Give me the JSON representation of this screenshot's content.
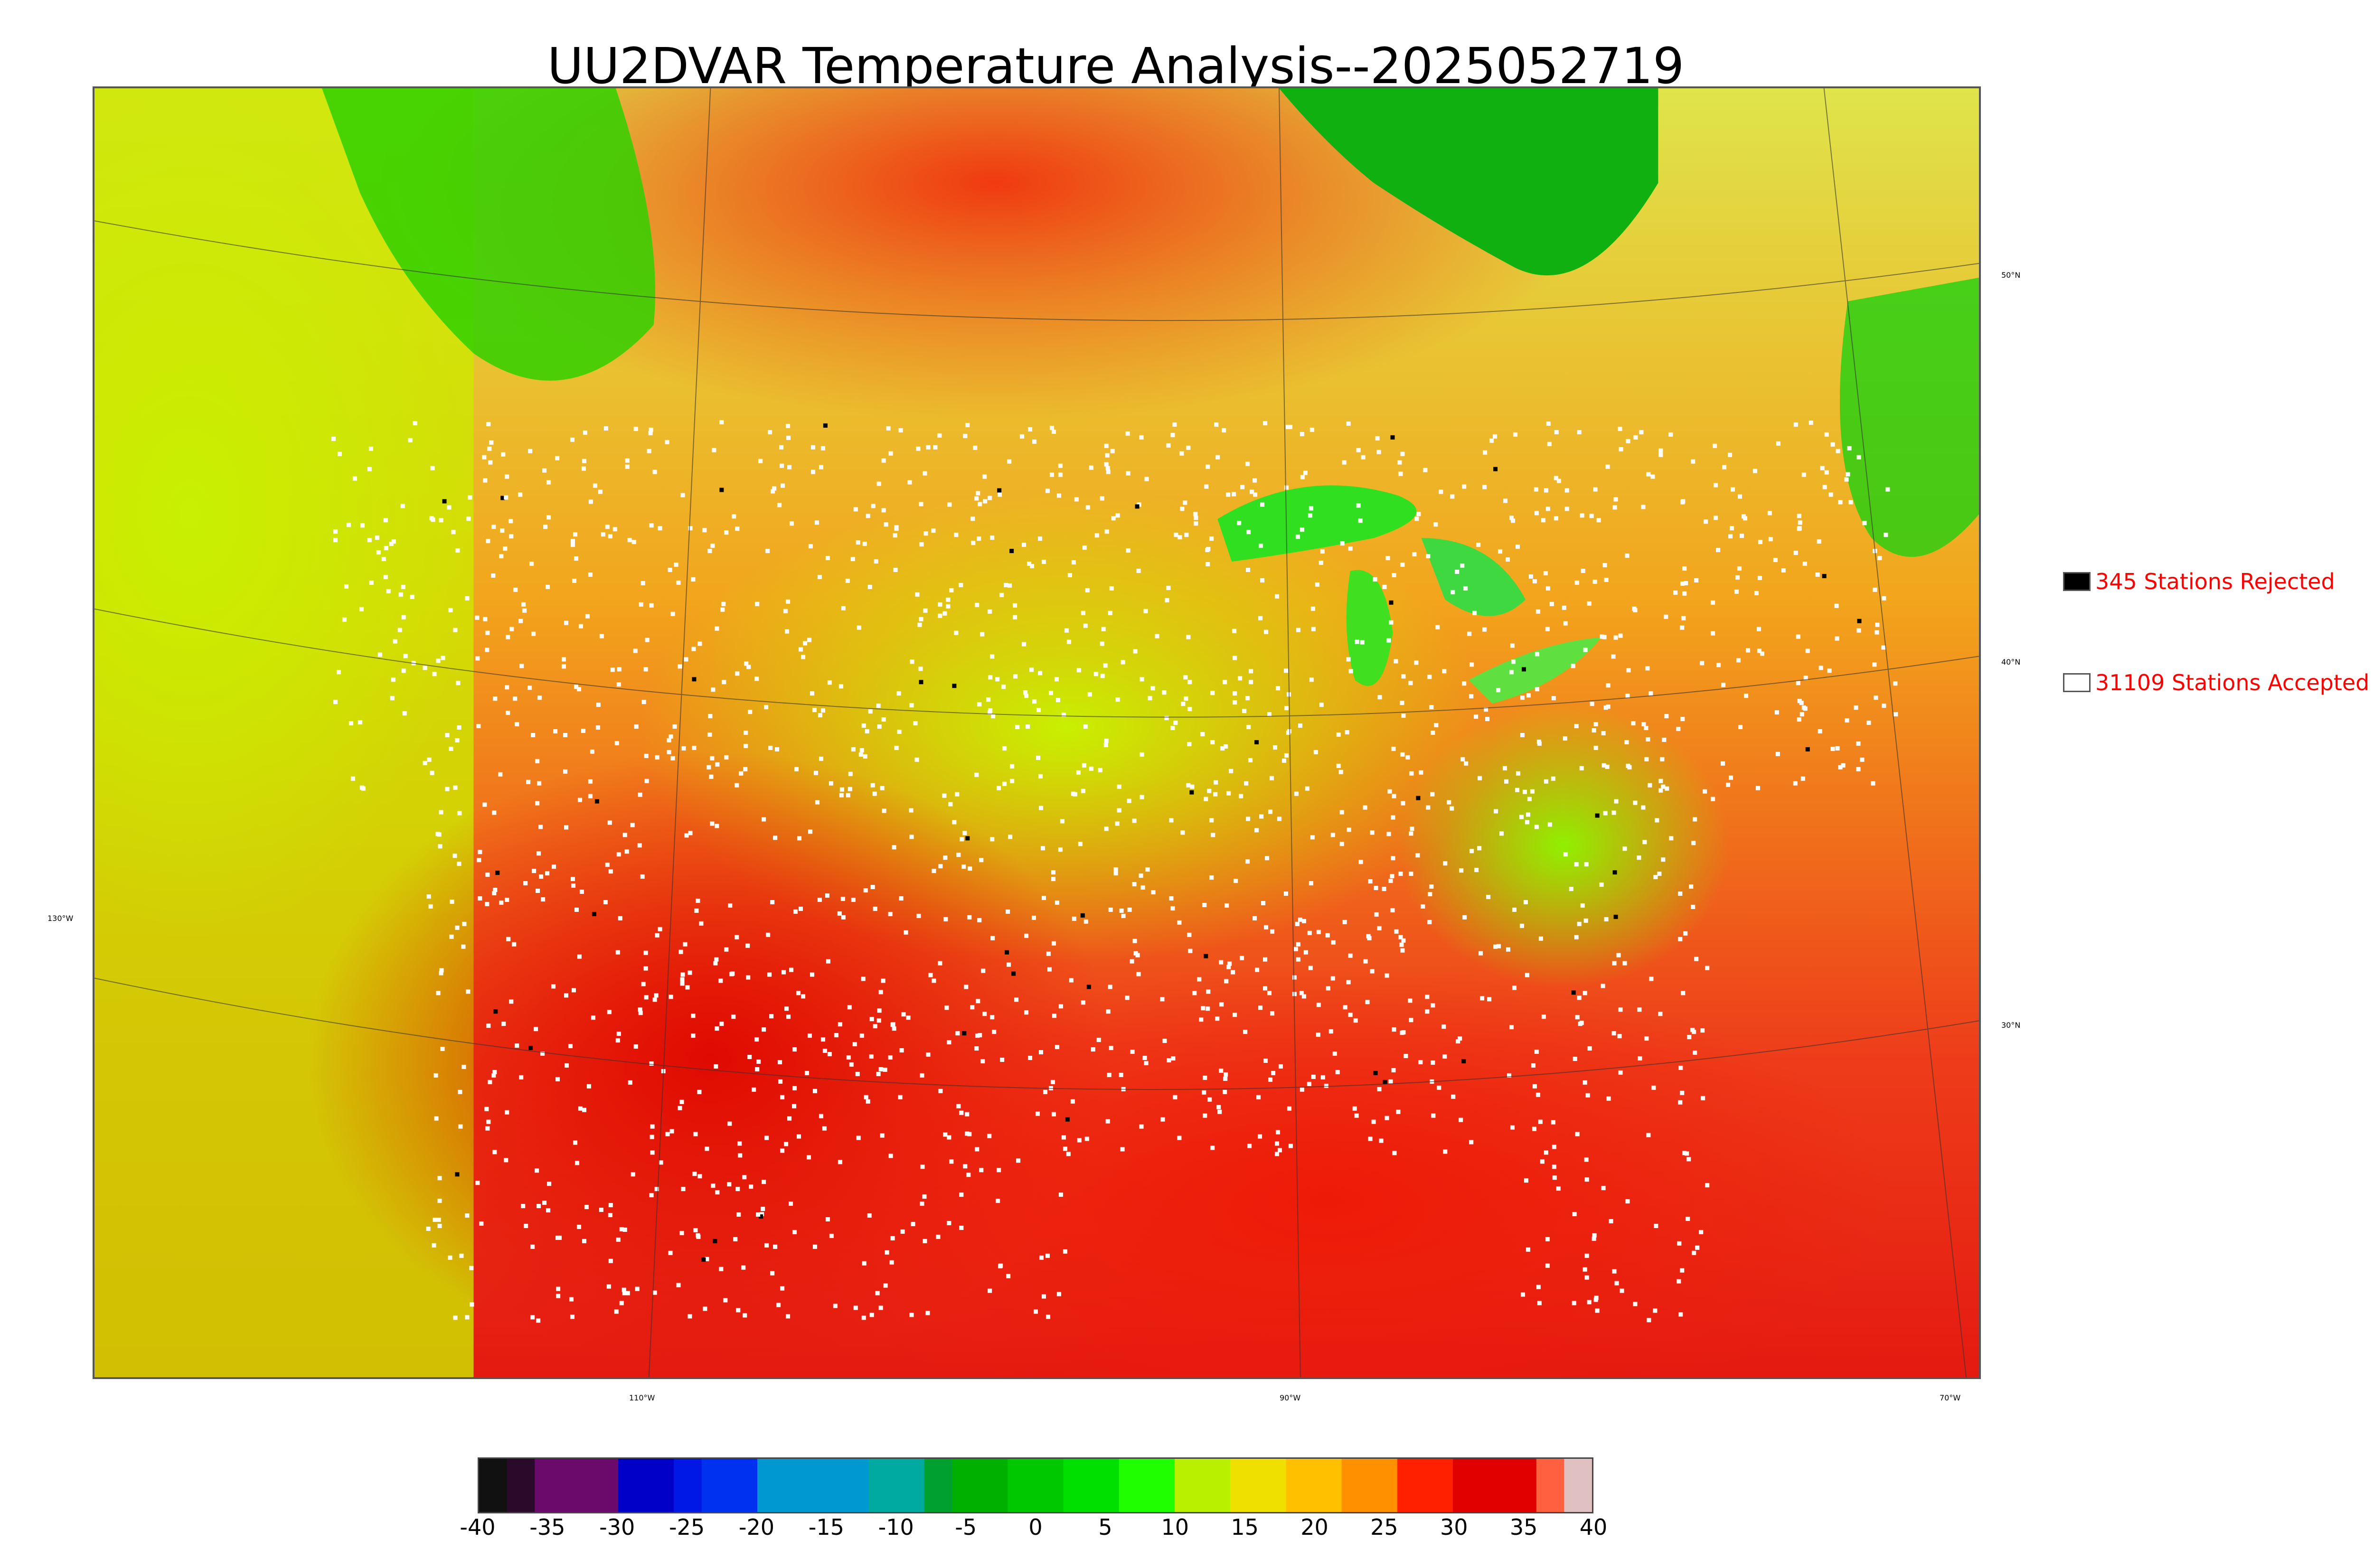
{
  "title": "UU2DVAR Temperature Analysis--2025052719",
  "map": {
    "lat_labels": [
      "50°N",
      "40°N",
      "30°N"
    ],
    "lon_labels": [
      "130°W",
      "110°W",
      "90°W",
      "70°W"
    ]
  },
  "legend": {
    "rejected": {
      "label": "345 Stations Rejected",
      "swatch_color": "#000000"
    },
    "accepted": {
      "label": "31109 Stations Accepted",
      "swatch_color": "#ffffff"
    },
    "text_color": "#ff0000"
  },
  "colorbar": {
    "min": -40,
    "max": 40,
    "tick_labels": [
      "-40",
      "-35",
      "-30",
      "-25",
      "-20",
      "-15",
      "-10",
      "-5",
      "0",
      "5",
      "10",
      "15",
      "20",
      "25",
      "30",
      "35",
      "40"
    ],
    "colors": [
      {
        "from": -40,
        "to": -38,
        "color": "#111111"
      },
      {
        "from": -38,
        "to": -36,
        "color": "#2a0a2a"
      },
      {
        "from": -36,
        "to": -30,
        "color": "#6a0a6a"
      },
      {
        "from": -30,
        "to": -26,
        "color": "#0000c8"
      },
      {
        "from": -26,
        "to": -24,
        "color": "#0018e6"
      },
      {
        "from": -24,
        "to": -20,
        "color": "#0030f0"
      },
      {
        "from": -20,
        "to": -12,
        "color": "#0098d0"
      },
      {
        "from": -12,
        "to": -8,
        "color": "#00aaa0"
      },
      {
        "from": -8,
        "to": -6,
        "color": "#00a030"
      },
      {
        "from": -6,
        "to": -2,
        "color": "#00b000"
      },
      {
        "from": -2,
        "to": 2,
        "color": "#00c800"
      },
      {
        "from": 2,
        "to": 6,
        "color": "#00e000"
      },
      {
        "from": 6,
        "to": 10,
        "color": "#20ff00"
      },
      {
        "from": 10,
        "to": 14,
        "color": "#b8f000"
      },
      {
        "from": 14,
        "to": 18,
        "color": "#f0e000"
      },
      {
        "from": 18,
        "to": 22,
        "color": "#ffc000"
      },
      {
        "from": 22,
        "to": 26,
        "color": "#ff9000"
      },
      {
        "from": 26,
        "to": 30,
        "color": "#ff2000"
      },
      {
        "from": 30,
        "to": 36,
        "color": "#e00000"
      },
      {
        "from": 36,
        "to": 38,
        "color": "#ff6040"
      },
      {
        "from": 38,
        "to": 40,
        "color": "#e0c0c0"
      }
    ]
  }
}
